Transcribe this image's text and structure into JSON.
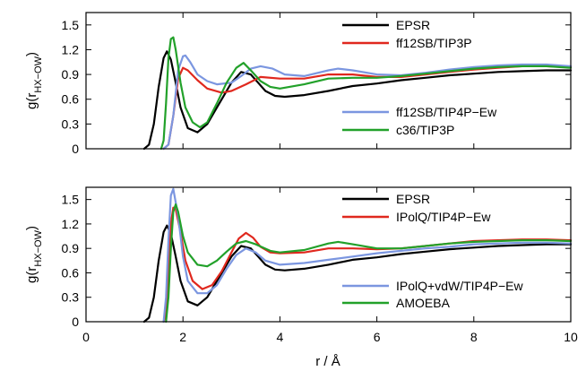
{
  "chart_data": [
    {
      "type": "line",
      "title": "",
      "xlabel": "",
      "ylabel_main": "g(r",
      "ylabel_sub": "HX−OW",
      "ylabel_close": ")",
      "xlim": [
        0,
        10
      ],
      "ylim": [
        0,
        1.65
      ],
      "xticks": [
        0,
        2,
        4,
        6,
        8,
        10
      ],
      "xtick_labels": [
        "",
        "",
        "",
        "",
        "",
        ""
      ],
      "yticks": [
        0,
        0.3,
        0.6,
        0.9,
        1.2,
        1.5
      ],
      "ytick_labels": [
        "0",
        "0.3",
        "0.6",
        "0.9",
        "1.2",
        "1.5"
      ],
      "grid": false,
      "legend_placement": "top-right and middle-right",
      "series": [
        {
          "name": "EPSR",
          "color": "#000000",
          "x": [
            1.2,
            1.3,
            1.4,
            1.5,
            1.6,
            1.67,
            1.75,
            1.85,
            1.95,
            2.1,
            2.3,
            2.5,
            2.8,
            3.0,
            3.2,
            3.4,
            3.55,
            3.7,
            3.9,
            4.1,
            4.5,
            5.0,
            5.5,
            6.0,
            6.5,
            7.0,
            7.5,
            8.0,
            8.5,
            9.0,
            9.5,
            10.0
          ],
          "y": [
            0.0,
            0.05,
            0.3,
            0.75,
            1.1,
            1.18,
            1.08,
            0.8,
            0.5,
            0.25,
            0.2,
            0.3,
            0.6,
            0.8,
            0.93,
            0.9,
            0.8,
            0.7,
            0.64,
            0.63,
            0.65,
            0.7,
            0.76,
            0.79,
            0.83,
            0.86,
            0.89,
            0.91,
            0.93,
            0.94,
            0.95,
            0.95
          ]
        },
        {
          "name": "ff12SB/TIP3P",
          "color": "#e0281e",
          "x": [
            1.6,
            1.7,
            1.8,
            1.9,
            2.0,
            2.1,
            2.3,
            2.5,
            2.8,
            3.0,
            3.3,
            3.6,
            4.0,
            4.5,
            5.0,
            5.5,
            6.0,
            6.5,
            7.0,
            7.5,
            8.0,
            8.5,
            9.0,
            9.5,
            10.0
          ],
          "y": [
            0.0,
            0.05,
            0.4,
            0.85,
            0.98,
            0.95,
            0.83,
            0.73,
            0.68,
            0.7,
            0.78,
            0.87,
            0.85,
            0.85,
            0.9,
            0.9,
            0.87,
            0.87,
            0.9,
            0.93,
            0.96,
            0.98,
            1.0,
            1.0,
            0.99
          ]
        },
        {
          "name": "ff12SB/TIP4P−Ew",
          "color": "#7b96e0",
          "x": [
            1.6,
            1.7,
            1.8,
            1.9,
            2.0,
            2.05,
            2.15,
            2.3,
            2.5,
            2.7,
            3.0,
            3.2,
            3.4,
            3.6,
            3.85,
            4.1,
            4.5,
            5.0,
            5.2,
            5.5,
            6.0,
            6.5,
            7.0,
            7.5,
            8.0,
            8.5,
            9.0,
            9.5,
            10.0
          ],
          "y": [
            0.0,
            0.05,
            0.4,
            0.95,
            1.12,
            1.13,
            1.05,
            0.9,
            0.82,
            0.78,
            0.8,
            0.88,
            0.97,
            1.0,
            0.97,
            0.9,
            0.88,
            0.95,
            0.97,
            0.95,
            0.9,
            0.89,
            0.92,
            0.96,
            0.99,
            1.01,
            1.02,
            1.02,
            1.0
          ]
        },
        {
          "name": "c36/TIP3P",
          "color": "#22a12a",
          "x": [
            1.55,
            1.6,
            1.65,
            1.7,
            1.75,
            1.8,
            1.85,
            1.95,
            2.05,
            2.2,
            2.35,
            2.5,
            2.7,
            2.9,
            3.1,
            3.25,
            3.4,
            3.6,
            3.8,
            4.0,
            4.5,
            5.0,
            5.5,
            6.0,
            6.5,
            7.0,
            7.5,
            8.0,
            8.5,
            9.0,
            9.5,
            10.0
          ],
          "y": [
            0.0,
            0.1,
            0.55,
            1.1,
            1.33,
            1.35,
            1.2,
            0.8,
            0.5,
            0.32,
            0.26,
            0.32,
            0.55,
            0.8,
            0.98,
            1.04,
            0.95,
            0.82,
            0.75,
            0.73,
            0.78,
            0.85,
            0.86,
            0.86,
            0.88,
            0.91,
            0.94,
            0.97,
            0.99,
            1.0,
            1.0,
            0.98
          ]
        }
      ]
    },
    {
      "type": "line",
      "title": "",
      "xlabel": "r / Å",
      "ylabel_main": "g(r",
      "ylabel_sub": "HX−OW",
      "ylabel_close": ")",
      "xlim": [
        0,
        10
      ],
      "ylim": [
        0,
        1.65
      ],
      "xticks": [
        0,
        2,
        4,
        6,
        8,
        10
      ],
      "xtick_labels": [
        "0",
        "2",
        "4",
        "6",
        "8",
        "10"
      ],
      "yticks": [
        0,
        0.3,
        0.6,
        0.9,
        1.2,
        1.5
      ],
      "ytick_labels": [
        "0",
        "0.3",
        "0.6",
        "0.9",
        "1.2",
        "1.5"
      ],
      "grid": false,
      "legend_placement": "top-right and middle-right",
      "series": [
        {
          "name": "EPSR",
          "color": "#000000",
          "x": [
            1.2,
            1.3,
            1.4,
            1.5,
            1.6,
            1.67,
            1.75,
            1.85,
            1.95,
            2.1,
            2.3,
            2.5,
            2.8,
            3.0,
            3.2,
            3.4,
            3.55,
            3.7,
            3.9,
            4.1,
            4.5,
            5.0,
            5.5,
            6.0,
            6.5,
            7.0,
            7.5,
            8.0,
            8.5,
            9.0,
            9.5,
            10.0
          ],
          "y": [
            0.0,
            0.05,
            0.3,
            0.75,
            1.1,
            1.18,
            1.08,
            0.8,
            0.5,
            0.25,
            0.2,
            0.3,
            0.6,
            0.8,
            0.93,
            0.9,
            0.8,
            0.7,
            0.64,
            0.63,
            0.65,
            0.7,
            0.76,
            0.79,
            0.83,
            0.86,
            0.89,
            0.91,
            0.93,
            0.94,
            0.95,
            0.95
          ]
        },
        {
          "name": "IPolQ/TIP4P−Ew",
          "color": "#e0281e",
          "x": [
            1.6,
            1.65,
            1.7,
            1.75,
            1.8,
            1.85,
            1.95,
            2.05,
            2.2,
            2.4,
            2.6,
            2.8,
            3.0,
            3.15,
            3.3,
            3.45,
            3.6,
            3.8,
            4.0,
            4.5,
            5.0,
            5.5,
            6.0,
            6.5,
            7.0,
            7.5,
            8.0,
            8.5,
            9.0,
            9.5,
            10.0
          ],
          "y": [
            0.0,
            0.1,
            0.6,
            1.2,
            1.4,
            1.38,
            1.1,
            0.75,
            0.5,
            0.4,
            0.45,
            0.62,
            0.85,
            1.02,
            1.09,
            1.03,
            0.92,
            0.85,
            0.84,
            0.85,
            0.9,
            0.9,
            0.89,
            0.9,
            0.93,
            0.96,
            0.99,
            1.0,
            1.01,
            1.01,
            1.0
          ]
        },
        {
          "name": "IPolQ+vdW/TIP4P−Ew",
          "color": "#7b96e0",
          "x": [
            1.6,
            1.65,
            1.7,
            1.75,
            1.8,
            1.9,
            2.0,
            2.1,
            2.3,
            2.5,
            2.7,
            2.9,
            3.1,
            3.3,
            3.5,
            3.7,
            4.0,
            4.5,
            5.0,
            5.5,
            6.0,
            6.5,
            7.0,
            7.5,
            8.0,
            8.5,
            9.0,
            9.5,
            10.0
          ],
          "y": [
            0.0,
            0.3,
            1.0,
            1.55,
            1.63,
            1.3,
            0.8,
            0.5,
            0.35,
            0.35,
            0.45,
            0.65,
            0.82,
            0.9,
            0.85,
            0.75,
            0.7,
            0.72,
            0.76,
            0.8,
            0.84,
            0.87,
            0.9,
            0.92,
            0.95,
            0.96,
            0.97,
            0.97,
            0.96
          ]
        },
        {
          "name": "AMOEBA",
          "color": "#22a12a",
          "x": [
            1.65,
            1.7,
            1.75,
            1.8,
            1.85,
            1.9,
            2.0,
            2.1,
            2.3,
            2.5,
            2.7,
            2.9,
            3.1,
            3.3,
            3.5,
            3.8,
            4.0,
            4.5,
            5.0,
            5.2,
            5.5,
            6.0,
            6.5,
            7.0,
            7.5,
            8.0,
            8.5,
            9.0,
            9.5,
            10.0
          ],
          "y": [
            0.0,
            0.3,
            0.9,
            1.35,
            1.44,
            1.35,
            1.05,
            0.85,
            0.7,
            0.68,
            0.75,
            0.86,
            0.96,
            0.99,
            0.95,
            0.87,
            0.85,
            0.88,
            0.96,
            0.98,
            0.95,
            0.9,
            0.9,
            0.93,
            0.96,
            0.98,
            0.99,
            1.0,
            1.0,
            0.99
          ]
        }
      ]
    }
  ]
}
